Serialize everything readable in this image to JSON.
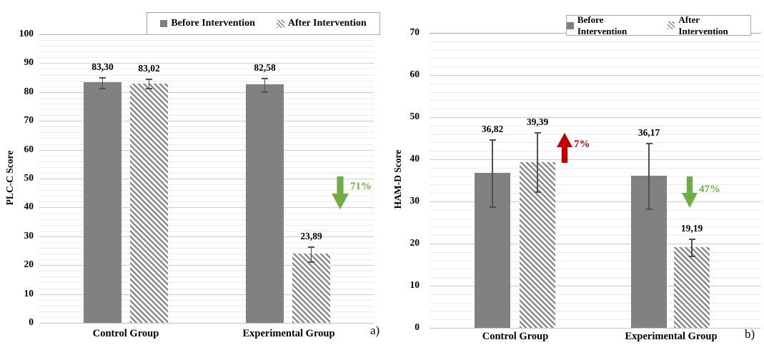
{
  "colors": {
    "bar_before": "#818181",
    "bar_after_hatch": "#8b8b8b",
    "error_bar": "#4f4f4f",
    "increase_red": "#c00000",
    "decrease_green": "#70ad47"
  },
  "chart_data": [
    {
      "type": "bar",
      "panel_label": "a)",
      "ylabel": "PLC-C Score",
      "xlabel": "",
      "ylim": [
        0,
        100
      ],
      "ytick_step": 10,
      "grid_minor_step": 2,
      "grid": true,
      "legend_position": "top",
      "categories": [
        "Control Group",
        "Experimental Group"
      ],
      "series": [
        {
          "name": "Before Intervention",
          "values": [
            83.3,
            82.58
          ],
          "value_labels": [
            "83,30",
            "82,58"
          ],
          "errors": [
            1.8,
            2.4
          ]
        },
        {
          "name": "After Intervention",
          "values": [
            83.02,
            23.89
          ],
          "value_labels": [
            "83,02",
            "23,89"
          ],
          "errors": [
            1.7,
            2.6
          ]
        }
      ],
      "annotations": [
        {
          "arrow": "down",
          "label": "71%",
          "color": "#70ad47",
          "group": "Experimental Group"
        }
      ]
    },
    {
      "type": "bar",
      "panel_label": "b)",
      "ylabel": "HAM-D Score",
      "xlabel": "",
      "ylim": [
        0,
        70
      ],
      "ytick_step": 10,
      "grid_minor_step": 2,
      "grid": true,
      "legend_position": "top",
      "categories": [
        "Control Group",
        "Experimental Group"
      ],
      "series": [
        {
          "name": "Before Intervention",
          "values": [
            36.82,
            36.17
          ],
          "value_labels": [
            "36,82",
            "36,17"
          ],
          "errors": [
            8.0,
            7.8
          ]
        },
        {
          "name": "After Intervention",
          "values": [
            39.39,
            19.19
          ],
          "value_labels": [
            "39,39",
            "19,19"
          ],
          "errors": [
            7.1,
            2.0
          ]
        }
      ],
      "annotations": [
        {
          "arrow": "up",
          "label": "7%",
          "color": "#c00000",
          "group": "Control Group"
        },
        {
          "arrow": "down",
          "label": "47%",
          "color": "#70ad47",
          "group": "Experimental Group"
        }
      ]
    }
  ]
}
